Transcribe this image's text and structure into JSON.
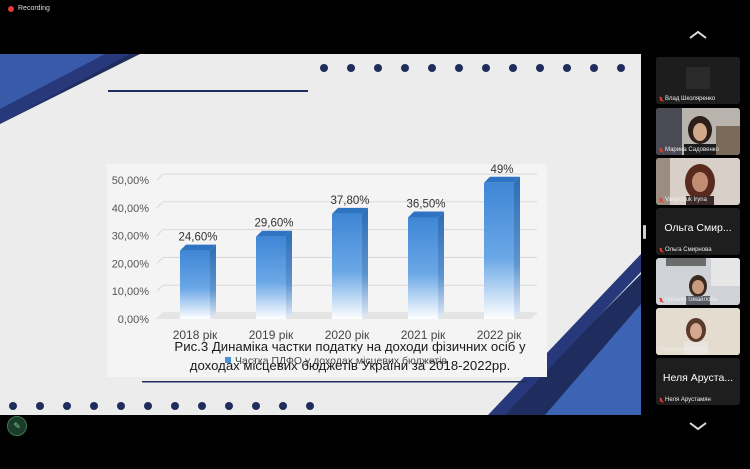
{
  "recording_label": "Recording",
  "colors": {
    "bar": "#4a90d9",
    "deco_dark": "#1e2c5e",
    "deco_light": "#3d63b5",
    "dot": "#1f2d5c"
  },
  "slide": {
    "caption_line1": "Рис.3 Динаміка частки податку на доходи фізичних осіб у",
    "caption_line2": "доходах місцевих бюджетів України за 2018-2022рр."
  },
  "chart_data": {
    "type": "bar",
    "categories": [
      "2018 рік",
      "2019 рік",
      "2020 рік",
      "2021 рік",
      "2022 рік"
    ],
    "series": [
      {
        "name": "Частка ПДФО у доходах місцевих бюджетів",
        "values": [
          24.6,
          29.6,
          37.8,
          36.5,
          49
        ]
      }
    ],
    "data_labels": [
      "24,60%",
      "29,60%",
      "37,80%",
      "36,50%",
      "49%"
    ],
    "y_ticks": [
      "0,00%",
      "10,00%",
      "20,00%",
      "30,00%",
      "40,00%",
      "50,00%"
    ],
    "ylim": [
      0,
      50
    ],
    "legend_position": "bottom",
    "grid": true,
    "style": "3d-gradient"
  },
  "participants": [
    {
      "name": "Влад Школяренко",
      "muted": true,
      "video": "none"
    },
    {
      "name": "Марина Садовенко",
      "muted": true,
      "video": "camera"
    },
    {
      "name": "Vasylchuk Iryna",
      "muted": true,
      "video": "camera"
    },
    {
      "name": "Ольга Смирнова",
      "display_name": "Ольга Смир...",
      "muted": true,
      "video": "none"
    },
    {
      "name": "Наталія Ізмайлова",
      "muted": true,
      "video": "camera"
    },
    {
      "name": "ПросенюкВікторія",
      "muted": false,
      "video": "camera",
      "active_speaker": true
    },
    {
      "name": "Неля Арустамян",
      "display_name": "Неля Аруста...",
      "muted": true,
      "video": "none"
    }
  ],
  "icons": {
    "scroll_up": "chevron-up-icon",
    "scroll_down": "chevron-down-icon",
    "annotate": "pencil-icon"
  }
}
